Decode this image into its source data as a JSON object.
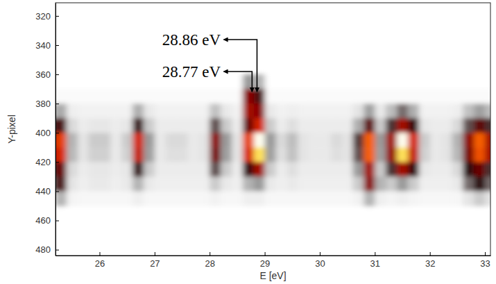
{
  "chart_data": {
    "type": "heatmap",
    "x_label": "E [eV]",
    "y_label": "Y-pixel",
    "xlim": [
      25.2,
      33.1
    ],
    "ylim": [
      311,
      484
    ],
    "xticks": [
      26,
      27,
      28,
      29,
      30,
      31,
      32,
      33
    ],
    "yticks": [
      320,
      340,
      360,
      380,
      400,
      420,
      440,
      460,
      480
    ],
    "zlim": [
      0,
      1
    ],
    "x": [
      25.1,
      25.3,
      25.5,
      25.7,
      25.9,
      26.1,
      26.3,
      26.5,
      26.7,
      26.9,
      27.1,
      27.3,
      27.5,
      27.7,
      27.9,
      28.1,
      28.3,
      28.5,
      28.7,
      28.9,
      29.1,
      29.3,
      29.5,
      29.7,
      29.9,
      30.1,
      30.3,
      30.5,
      30.7,
      30.9,
      31.1,
      31.3,
      31.5,
      31.7,
      31.9,
      32.1,
      32.3,
      32.5,
      32.7,
      32.9,
      33.1
    ],
    "y": [
      365,
      375,
      385,
      395,
      405,
      415,
      425,
      435,
      445
    ],
    "z": [
      [
        0,
        0,
        0,
        0,
        0,
        0,
        0,
        0,
        0,
        0,
        0,
        0,
        0,
        0,
        0,
        0,
        0,
        0,
        0.25,
        0.2,
        0,
        0,
        0,
        0,
        0,
        0,
        0,
        0,
        0,
        0,
        0,
        0,
        0,
        0,
        0,
        0,
        0,
        0,
        0,
        0,
        0
      ],
      [
        0.02,
        0.02,
        0.02,
        0.02,
        0.02,
        0.02,
        0.02,
        0.02,
        0.02,
        0.02,
        0.02,
        0.02,
        0.02,
        0.02,
        0.02,
        0.02,
        0.02,
        0.02,
        0.55,
        0.45,
        0.02,
        0.02,
        0.02,
        0.02,
        0.02,
        0.02,
        0.02,
        0.02,
        0.02,
        0.02,
        0.02,
        0.02,
        0.02,
        0.02,
        0.02,
        0.02,
        0.02,
        0.02,
        0.02,
        0.02,
        0.02
      ],
      [
        0.18,
        0.22,
        0.06,
        0.05,
        0.05,
        0.05,
        0.05,
        0.05,
        0.21,
        0.08,
        0.05,
        0.05,
        0.05,
        0.05,
        0.05,
        0.17,
        0.08,
        0.05,
        0.6,
        0.55,
        0.08,
        0.05,
        0.06,
        0.05,
        0.05,
        0.05,
        0.05,
        0.05,
        0.1,
        0.24,
        0.08,
        0.18,
        0.3,
        0.21,
        0.05,
        0.05,
        0.05,
        0.06,
        0.17,
        0.24,
        0.18
      ],
      [
        0.36,
        0.45,
        0.12,
        0.07,
        0.09,
        0.09,
        0.07,
        0.09,
        0.42,
        0.15,
        0.07,
        0.07,
        0.07,
        0.07,
        0.07,
        0.33,
        0.15,
        0.07,
        0.5,
        0.7,
        0.15,
        0.07,
        0.11,
        0.07,
        0.07,
        0.07,
        0.07,
        0.07,
        0.21,
        0.48,
        0.15,
        0.36,
        0.6,
        0.42,
        0.09,
        0.07,
        0.07,
        0.12,
        0.33,
        0.48,
        0.36
      ],
      [
        0.6,
        0.75,
        0.2,
        0.1,
        0.15,
        0.15,
        0.08,
        0.15,
        0.7,
        0.25,
        0.08,
        0.12,
        0.12,
        0.08,
        0.1,
        0.55,
        0.25,
        0.1,
        0.75,
        1.0,
        0.25,
        0.12,
        0.18,
        0.1,
        0.08,
        0.08,
        0.12,
        0.1,
        0.35,
        0.8,
        0.25,
        0.6,
        1.0,
        0.7,
        0.15,
        0.08,
        0.1,
        0.2,
        0.55,
        0.8,
        0.6
      ],
      [
        0.57,
        0.71,
        0.19,
        0.1,
        0.14,
        0.14,
        0.08,
        0.14,
        0.67,
        0.24,
        0.08,
        0.11,
        0.11,
        0.08,
        0.1,
        0.52,
        0.24,
        0.1,
        0.71,
        0.95,
        0.24,
        0.11,
        0.17,
        0.1,
        0.08,
        0.08,
        0.11,
        0.1,
        0.33,
        0.8,
        0.24,
        0.57,
        0.95,
        0.67,
        0.14,
        0.08,
        0.1,
        0.19,
        0.52,
        0.78,
        0.6
      ],
      [
        0.36,
        0.5,
        0.12,
        0.07,
        0.09,
        0.09,
        0.07,
        0.09,
        0.42,
        0.15,
        0.07,
        0.07,
        0.07,
        0.07,
        0.07,
        0.33,
        0.15,
        0.07,
        0.42,
        0.6,
        0.15,
        0.07,
        0.11,
        0.07,
        0.07,
        0.07,
        0.07,
        0.07,
        0.25,
        0.6,
        0.15,
        0.36,
        0.6,
        0.42,
        0.09,
        0.07,
        0.07,
        0.12,
        0.4,
        0.5,
        0.36
      ],
      [
        0.3,
        0.45,
        0.1,
        0.06,
        0.08,
        0.08,
        0.06,
        0.08,
        0.2,
        0.08,
        0.06,
        0.06,
        0.06,
        0.06,
        0.06,
        0.15,
        0.08,
        0.06,
        0.2,
        0.25,
        0.08,
        0.06,
        0.08,
        0.06,
        0.06,
        0.06,
        0.06,
        0.06,
        0.15,
        0.55,
        0.2,
        0.15,
        0.25,
        0.15,
        0.06,
        0.06,
        0.06,
        0.08,
        0.3,
        0.4,
        0.3
      ],
      [
        0.1,
        0.2,
        0.04,
        0.03,
        0.03,
        0.03,
        0.03,
        0.03,
        0.06,
        0.03,
        0.03,
        0.03,
        0.03,
        0.03,
        0.03,
        0.05,
        0.03,
        0.03,
        0.06,
        0.06,
        0.03,
        0.03,
        0.03,
        0.03,
        0.03,
        0.03,
        0.03,
        0.03,
        0.05,
        0.2,
        0.06,
        0.04,
        0.06,
        0.04,
        0.03,
        0.03,
        0.03,
        0.03,
        0.1,
        0.15,
        0.1
      ]
    ],
    "annotations": [
      {
        "text": "28.86 eV",
        "x": 28.86,
        "y": 372
      },
      {
        "text": "28.77 eV",
        "x": 28.77,
        "y": 372
      }
    ]
  }
}
